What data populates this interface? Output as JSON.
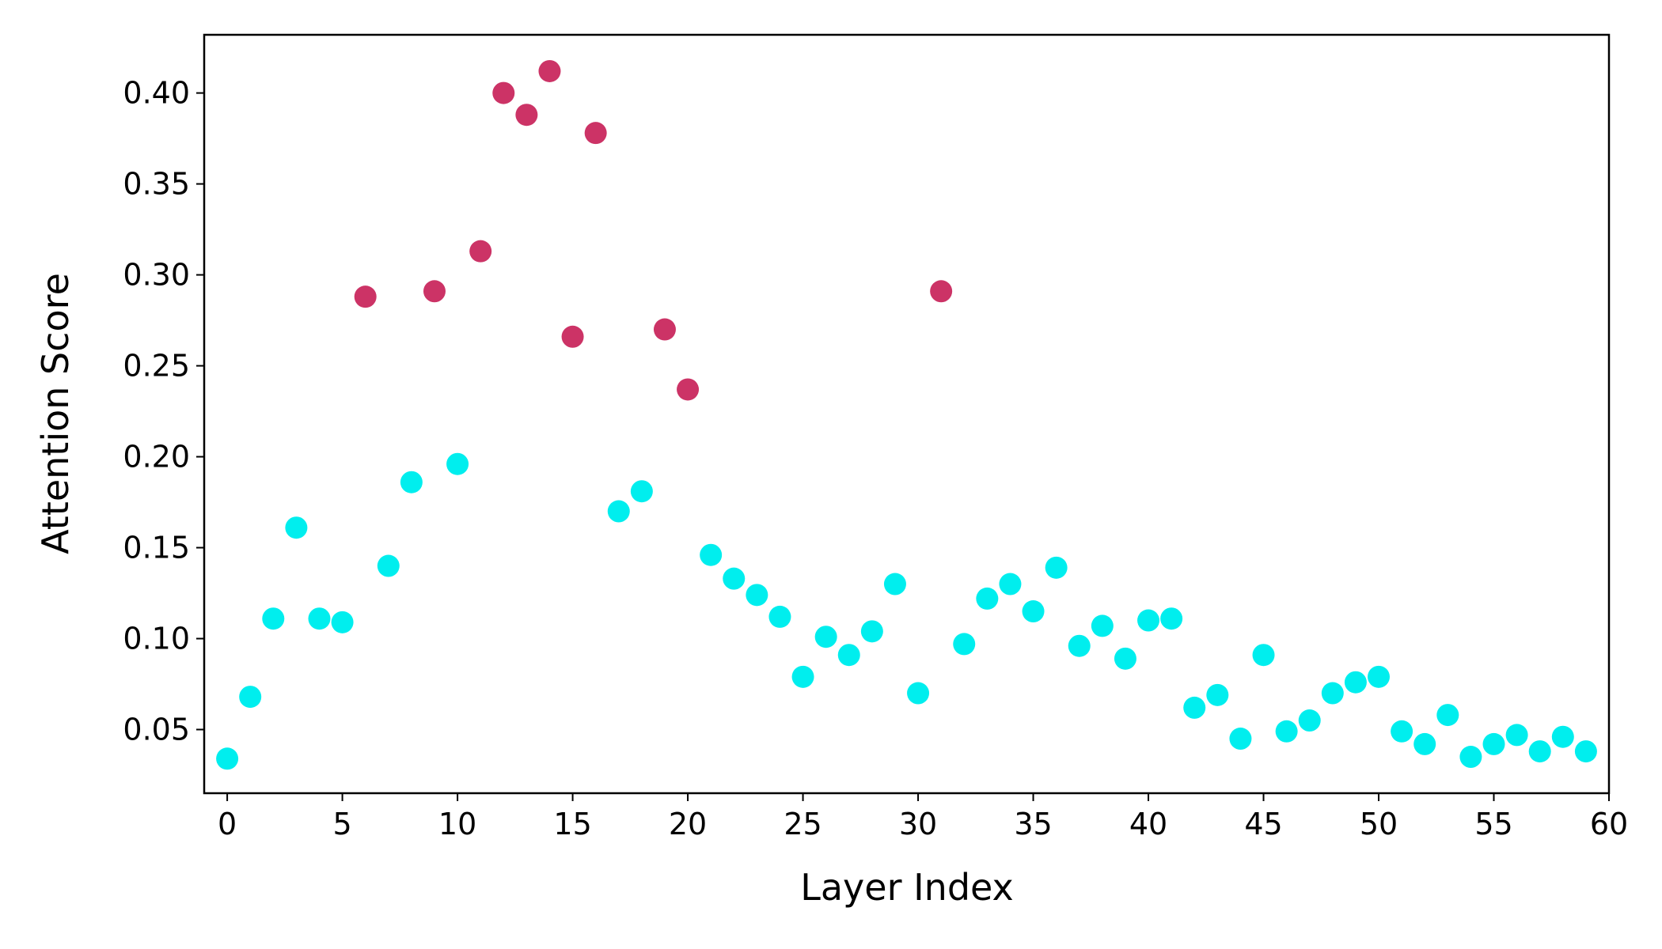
{
  "chart_data": {
    "type": "scatter",
    "xlabel": "Layer Index",
    "ylabel": "Attention Score",
    "xlim": [
      -1,
      60
    ],
    "ylim": [
      0.015,
      0.432
    ],
    "xticks": [
      0,
      5,
      10,
      15,
      20,
      25,
      30,
      35,
      40,
      45,
      50,
      55,
      60
    ],
    "yticks": [
      0.05,
      {
        "value": 0.1,
        "label": "0.10"
      },
      0.15,
      {
        "value": 0.2,
        "label": "0.20"
      },
      0.25,
      {
        "value": 0.3,
        "label": "0.30"
      },
      0.35,
      {
        "value": 0.4,
        "label": "0.40"
      }
    ],
    "series": [
      {
        "color": "#00eeee",
        "x": [
          0,
          1,
          2,
          3,
          4,
          5,
          7,
          8,
          10,
          17,
          18,
          21,
          22,
          23,
          24,
          25,
          26,
          27,
          28,
          29,
          30,
          32,
          33,
          34,
          35,
          36,
          37,
          38,
          39,
          40,
          41,
          42,
          43,
          44,
          45,
          46,
          47,
          48,
          49,
          50,
          51,
          52,
          53,
          54,
          55,
          56,
          57,
          58,
          59
        ],
        "values": [
          0.034,
          0.068,
          0.111,
          0.161,
          0.111,
          0.109,
          0.14,
          0.186,
          0.196,
          0.17,
          0.181,
          0.146,
          0.133,
          0.124,
          0.112,
          0.079,
          0.101,
          0.091,
          0.104,
          0.13,
          0.07,
          0.097,
          0.122,
          0.13,
          0.115,
          0.139,
          0.096,
          0.107,
          0.089,
          0.11,
          0.111,
          0.062,
          0.069,
          0.045,
          0.091,
          0.049,
          0.055,
          0.07,
          0.076,
          0.079,
          0.049,
          0.042,
          0.058,
          0.035,
          0.042,
          0.047,
          0.038,
          0.046,
          0.038
        ]
      },
      {
        "color": "#cc3366",
        "x": [
          6,
          9,
          11,
          12,
          13,
          14,
          15,
          16,
          19,
          20,
          31
        ],
        "values": [
          0.288,
          0.291,
          0.313,
          0.4,
          0.388,
          0.412,
          0.266,
          0.378,
          0.27,
          0.237,
          0.291
        ]
      }
    ]
  }
}
